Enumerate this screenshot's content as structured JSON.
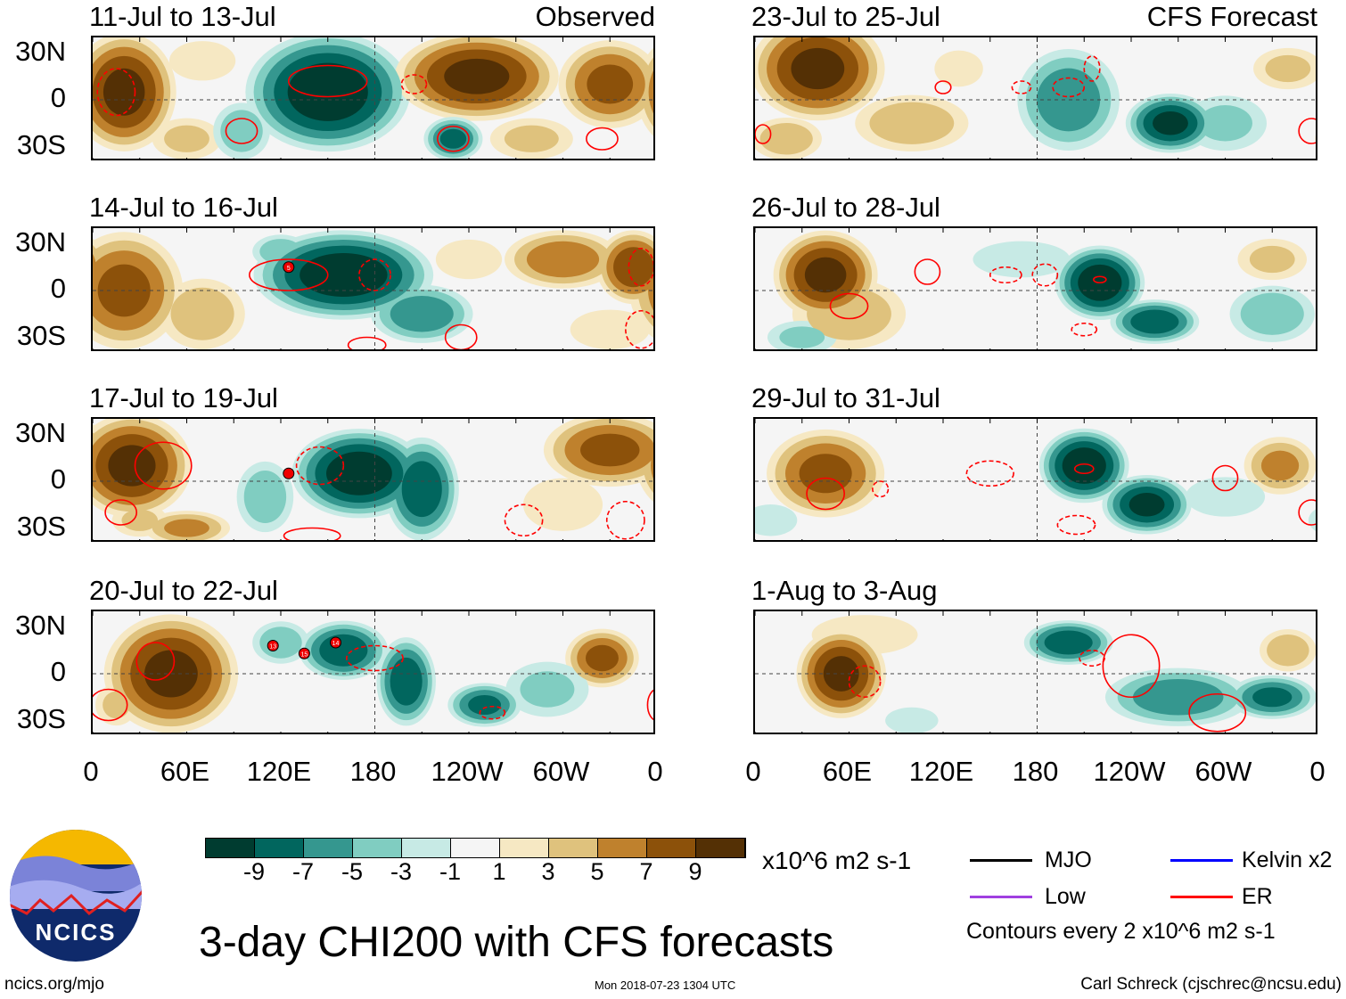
{
  "labels": {
    "observed": "Observed",
    "forecast": "CFS Forecast",
    "lat": [
      "30N",
      "0",
      "30S"
    ],
    "lon": [
      "0",
      "60E",
      "120E",
      "180",
      "120W",
      "60W",
      "0"
    ]
  },
  "colorbar": {
    "colors": [
      "#003c30",
      "#01665e",
      "#35978f",
      "#80cdc1",
      "#c7eae5",
      "#f5f5f5",
      "#f6e8c3",
      "#dfc27d",
      "#bf812d",
      "#8c510a",
      "#543005"
    ],
    "ticks": [
      "-9",
      "-7",
      "-5",
      "-3",
      "-1",
      "1",
      "3",
      "5",
      "7",
      "9"
    ],
    "units": "x10^6 m2 s-1"
  },
  "title": "3-day CHI200 with CFS forecasts",
  "legend": {
    "mjo": "MJO",
    "kelvin": "Kelvin x2",
    "low": "Low",
    "er": "ER",
    "contours": "Contours every 2 x10^6 m2 s-1",
    "colors": {
      "mjo": "#000000",
      "kelvin": "#0000ff",
      "low": "#a040e0",
      "er": "#ff0000"
    }
  },
  "footer": {
    "site": "ncics.org/mjo",
    "timestamp": "Mon 2018-07-23 1304 UTC",
    "author": "Carl Schreck (cjschrec@ncsu.edu)",
    "logo": "NCICS"
  },
  "chart_data": {
    "type": "heatmap",
    "variable": "CHI200 anomaly",
    "lon_range": [
      0,
      360
    ],
    "lat_range": [
      -40,
      40
    ],
    "blob_format": "[lon, lat, peak value, lon radius deg, lat radius deg]",
    "panels": [
      {
        "period": "11-Jul to 13-Jul",
        "kind": "observed",
        "blobs": [
          [
            20,
            5,
            10,
            35,
            40
          ],
          [
            60,
            -25,
            4,
            25,
            15
          ],
          [
            150,
            5,
            -11,
            55,
            40
          ],
          [
            95,
            -20,
            -5,
            20,
            20
          ],
          [
            245,
            15,
            10,
            55,
            30
          ],
          [
            330,
            10,
            8,
            35,
            30
          ],
          [
            230,
            -25,
            -8,
            20,
            15
          ],
          [
            280,
            -25,
            4,
            30,
            15
          ],
          [
            70,
            25,
            3,
            25,
            15
          ]
        ],
        "er": [
          [
            150,
            12,
            25,
            10,
            0
          ],
          [
            95,
            -20,
            10,
            8,
            0
          ],
          [
            230,
            -25,
            10,
            8,
            0
          ],
          [
            325,
            -25,
            10,
            7,
            0
          ],
          [
            205,
            10,
            8,
            6,
            1
          ],
          [
            15,
            5,
            12,
            15,
            1
          ]
        ],
        "storms": []
      },
      {
        "period": "14-Jul to 16-Jul",
        "kind": "observed",
        "blobs": [
          [
            20,
            0,
            8,
            40,
            40
          ],
          [
            70,
            -15,
            5,
            30,
            25
          ],
          [
            160,
            10,
            -11,
            60,
            30
          ],
          [
            210,
            -15,
            -7,
            35,
            20
          ],
          [
            120,
            25,
            -5,
            20,
            12
          ],
          [
            300,
            20,
            7,
            40,
            20
          ],
          [
            345,
            15,
            9,
            25,
            25
          ],
          [
            240,
            20,
            3,
            25,
            15
          ],
          [
            330,
            -25,
            3,
            30,
            15
          ]
        ],
        "er": [
          [
            125,
            10,
            25,
            10,
            0
          ],
          [
            180,
            10,
            10,
            10,
            1
          ],
          [
            235,
            -30,
            10,
            8,
            0
          ],
          [
            175,
            -35,
            12,
            5,
            0
          ],
          [
            350,
            -25,
            10,
            12,
            1
          ],
          [
            350,
            15,
            8,
            12,
            1
          ]
        ],
        "storms": [
          [
            125,
            15,
            "5"
          ]
        ]
      },
      {
        "period": "17-Jul to 19-Jul",
        "kind": "observed",
        "blobs": [
          [
            25,
            10,
            10,
            40,
            35
          ],
          [
            60,
            -30,
            6,
            30,
            12
          ],
          [
            170,
            5,
            -11,
            45,
            30
          ],
          [
            210,
            -5,
            -9,
            25,
            35
          ],
          [
            110,
            -10,
            -5,
            20,
            25
          ],
          [
            330,
            20,
            8,
            45,
            25
          ],
          [
            300,
            -15,
            3,
            30,
            20
          ],
          [
            30,
            -25,
            4,
            20,
            12
          ]
        ],
        "er": [
          [
            45,
            10,
            18,
            15,
            0
          ],
          [
            18,
            -20,
            10,
            8,
            0
          ],
          [
            145,
            10,
            15,
            12,
            1
          ],
          [
            275,
            -25,
            12,
            10,
            1
          ],
          [
            340,
            -25,
            12,
            12,
            1
          ],
          [
            140,
            -35,
            18,
            5,
            0
          ]
        ],
        "storms": [
          [
            125,
            5,
            ""
          ]
        ]
      },
      {
        "period": "20-Jul to 22-Jul",
        "kind": "observed",
        "blobs": [
          [
            50,
            0,
            10,
            45,
            40
          ],
          [
            120,
            20,
            -5,
            20,
            15
          ],
          [
            160,
            15,
            -9,
            30,
            20
          ],
          [
            200,
            -5,
            -9,
            20,
            30
          ],
          [
            250,
            -20,
            -8,
            25,
            15
          ],
          [
            325,
            10,
            8,
            25,
            20
          ],
          [
            15,
            -20,
            4,
            15,
            15
          ],
          [
            290,
            -10,
            -4,
            30,
            20
          ]
        ],
        "er": [
          [
            40,
            8,
            12,
            12,
            0
          ],
          [
            10,
            -20,
            12,
            10,
            0
          ],
          [
            180,
            10,
            18,
            8,
            1
          ],
          [
            255,
            -25,
            8,
            4,
            1
          ],
          [
            360,
            -20,
            6,
            10,
            0
          ]
        ],
        "storms": [
          [
            115,
            18,
            "13"
          ],
          [
            135,
            13,
            "15"
          ],
          [
            155,
            20,
            "14"
          ]
        ]
      },
      {
        "period": "23-Jul to 25-Jul",
        "kind": "forecast",
        "blobs": [
          [
            40,
            20,
            10,
            45,
            35
          ],
          [
            20,
            -25,
            5,
            25,
            15
          ],
          [
            200,
            0,
            -7,
            35,
            35
          ],
          [
            265,
            -15,
            -10,
            30,
            20
          ],
          [
            300,
            -15,
            -4,
            30,
            20
          ],
          [
            130,
            20,
            2,
            20,
            15
          ],
          [
            340,
            20,
            4,
            25,
            15
          ],
          [
            100,
            -15,
            5,
            40,
            20
          ]
        ],
        "er": [
          [
            120,
            8,
            5,
            4,
            0
          ],
          [
            200,
            8,
            10,
            6,
            1
          ],
          [
            170,
            8,
            6,
            4,
            1
          ],
          [
            215,
            20,
            5,
            8,
            1
          ],
          [
            355,
            -20,
            8,
            8,
            0
          ],
          [
            5,
            -22,
            5,
            6,
            0
          ]
        ],
        "storms": []
      },
      {
        "period": "26-Jul to 28-Jul",
        "kind": "forecast",
        "blobs": [
          [
            45,
            10,
            10,
            35,
            30
          ],
          [
            60,
            -15,
            5,
            40,
            25
          ],
          [
            220,
            5,
            -11,
            30,
            25
          ],
          [
            255,
            -20,
            -9,
            30,
            15
          ],
          [
            330,
            -15,
            -5,
            30,
            20
          ],
          [
            330,
            20,
            4,
            25,
            15
          ],
          [
            30,
            -30,
            -4,
            25,
            12
          ],
          [
            170,
            20,
            -2,
            40,
            15
          ]
        ],
        "er": [
          [
            60,
            -10,
            12,
            8,
            0
          ],
          [
            110,
            12,
            8,
            8,
            0
          ],
          [
            160,
            10,
            10,
            5,
            1
          ],
          [
            185,
            10,
            8,
            7,
            1
          ],
          [
            220,
            7,
            4,
            2,
            0
          ],
          [
            210,
            -25,
            8,
            4,
            1
          ]
        ],
        "storms": []
      },
      {
        "period": "29-Jul to 31-Jul",
        "kind": "forecast",
        "blobs": [
          [
            45,
            5,
            8,
            40,
            30
          ],
          [
            210,
            10,
            -11,
            30,
            25
          ],
          [
            250,
            -15,
            -10,
            30,
            20
          ],
          [
            335,
            10,
            6,
            25,
            20
          ],
          [
            10,
            -25,
            -3,
            20,
            12
          ],
          [
            300,
            -10,
            -3,
            30,
            15
          ]
        ],
        "er": [
          [
            45,
            -8,
            12,
            10,
            0
          ],
          [
            80,
            -5,
            5,
            5,
            1
          ],
          [
            150,
            5,
            15,
            8,
            1
          ],
          [
            210,
            8,
            6,
            3,
            0
          ],
          [
            205,
            -28,
            12,
            6,
            1
          ],
          [
            300,
            2,
            8,
            8,
            0
          ],
          [
            355,
            -20,
            8,
            8,
            0
          ]
        ],
        "storms": []
      },
      {
        "period": "1-Aug to 3-Aug",
        "kind": "forecast",
        "blobs": [
          [
            55,
            0,
            10,
            30,
            30
          ],
          [
            70,
            25,
            3,
            40,
            15
          ],
          [
            200,
            20,
            -9,
            30,
            15
          ],
          [
            270,
            -15,
            -7,
            50,
            20
          ],
          [
            330,
            -15,
            -8,
            30,
            15
          ],
          [
            340,
            15,
            5,
            20,
            15
          ],
          [
            100,
            -30,
            -3,
            20,
            10
          ]
        ],
        "er": [
          [
            70,
            -5,
            10,
            10,
            1
          ],
          [
            240,
            5,
            18,
            20,
            0
          ],
          [
            215,
            10,
            8,
            5,
            1
          ],
          [
            295,
            -25,
            18,
            12,
            0
          ]
        ],
        "storms": []
      }
    ]
  }
}
